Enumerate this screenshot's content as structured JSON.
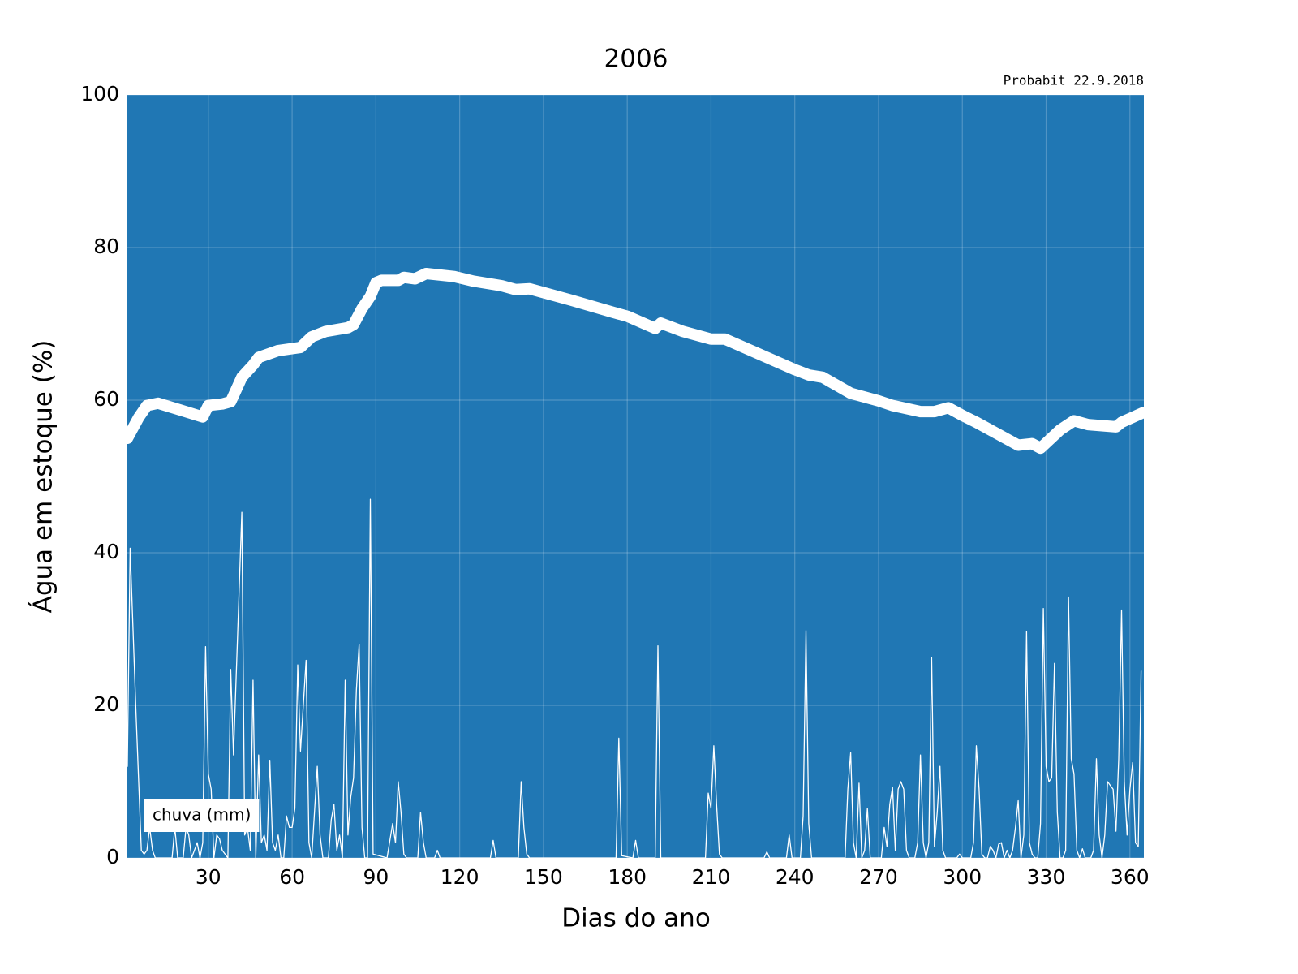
{
  "chart_data": {
    "type": "line",
    "title": "2006",
    "annotation": "Probabit 22.9.2018",
    "xlabel": "Dias do ano",
    "ylabel": "Água em estoque (%)",
    "xlim": [
      1,
      365
    ],
    "ylim": [
      0,
      100
    ],
    "xticks": [
      30,
      60,
      90,
      120,
      150,
      180,
      210,
      240,
      270,
      300,
      330,
      360
    ],
    "yticks": [
      0,
      20,
      40,
      60,
      80,
      100
    ],
    "grid": true,
    "legend": "lower left",
    "plot_background": "#2077b4",
    "annotation_color": "#2077b4",
    "series": [
      {
        "color": "#ffffff",
        "width": 14,
        "x": [
          1,
          5,
          8,
          12,
          20,
          28,
          30,
          35,
          38,
          40,
          42,
          46,
          48,
          55,
          63,
          67,
          72,
          80,
          82,
          85,
          88,
          90,
          92,
          98,
          100,
          104,
          108,
          118,
          125,
          135,
          140,
          145,
          160,
          175,
          180,
          190,
          192,
          200,
          210,
          215,
          220,
          240,
          245,
          250,
          260,
          270,
          275,
          285,
          290,
          295,
          300,
          305,
          320,
          325,
          328,
          335,
          340,
          345,
          355,
          357,
          365
        ],
        "values": [
          55.0,
          57.7,
          59.3,
          59.6,
          58.7,
          57.8,
          59.3,
          59.5,
          59.8,
          61.4,
          63.0,
          64.6,
          65.6,
          66.5,
          66.9,
          68.3,
          69.0,
          69.5,
          69.9,
          72.0,
          73.6,
          75.4,
          75.7,
          75.7,
          76.1,
          75.9,
          76.6,
          76.2,
          75.6,
          75.0,
          74.5,
          74.6,
          73.1,
          71.5,
          71.0,
          69.4,
          70.1,
          69.0,
          68.0,
          68.0,
          67.2,
          64.0,
          63.3,
          63.0,
          60.9,
          59.9,
          59.3,
          58.5,
          58.5,
          59.0,
          58.0,
          57.1,
          54.1,
          54.3,
          53.7,
          56.1,
          57.3,
          56.8,
          56.5,
          57.1,
          58.4
        ]
      },
      {
        "name": "chuva (mm)",
        "color": "#ffffff",
        "width": 1.3,
        "x": [
          1,
          2,
          4,
          6,
          7,
          8,
          9,
          10,
          11,
          17,
          18,
          19,
          21,
          22,
          23,
          24,
          26,
          27,
          28,
          29,
          30,
          31,
          32,
          33,
          34,
          35,
          37,
          38,
          39,
          42,
          43,
          44,
          45,
          46,
          47,
          48,
          49,
          50,
          51,
          52,
          53,
          54,
          55,
          56,
          57,
          58,
          59,
          60,
          61,
          62,
          63,
          65,
          66,
          67,
          69,
          70,
          71,
          73,
          74,
          75,
          76,
          77,
          78,
          79,
          80,
          81,
          82,
          83,
          84,
          85,
          86,
          87,
          88,
          89,
          94,
          96,
          97,
          98,
          99,
          100,
          101,
          105,
          106,
          107,
          108,
          111,
          112,
          113,
          131,
          132,
          133,
          141,
          142,
          143,
          144,
          145,
          176,
          177,
          178,
          182,
          183,
          184,
          190,
          191,
          192,
          208,
          209,
          210,
          211,
          212,
          213,
          214,
          229,
          230,
          231,
          237,
          238,
          239,
          242,
          243,
          244,
          245,
          246,
          258,
          259,
          260,
          261,
          262,
          263,
          264,
          265,
          266,
          267,
          271,
          272,
          273,
          274,
          275,
          276,
          277,
          278,
          279,
          280,
          281,
          283,
          284,
          285,
          286,
          287,
          288,
          289,
          290,
          291,
          292,
          293,
          294,
          298,
          299,
          300,
          303,
          304,
          305,
          306,
          307,
          308,
          309,
          310,
          311,
          312,
          313,
          314,
          315,
          316,
          317,
          318,
          319,
          320,
          321,
          322,
          323,
          324,
          325,
          326,
          327,
          328,
          329,
          330,
          331,
          332,
          333,
          334,
          335,
          336,
          337,
          338,
          339,
          340,
          341,
          342,
          343,
          344,
          346,
          347,
          348,
          349,
          350,
          351,
          352,
          353,
          354,
          355,
          356,
          357,
          358,
          359,
          360,
          361,
          362,
          363,
          364
        ],
        "values": [
          12,
          40.6,
          20,
          1,
          0.5,
          1,
          4,
          1,
          0,
          0,
          4,
          0,
          0,
          4,
          3,
          0,
          2,
          0,
          2,
          27.7,
          11,
          9,
          0,
          3,
          2.5,
          1,
          0,
          24.7,
          13.5,
          45.3,
          3,
          4,
          1,
          23.3,
          0,
          13.5,
          2,
          3,
          1,
          12.8,
          2,
          1,
          3,
          0,
          0,
          5.5,
          4,
          4,
          6.5,
          25.3,
          14,
          25.9,
          2,
          0,
          12,
          3,
          0,
          0,
          5,
          7,
          1,
          3,
          0,
          23.3,
          3,
          8,
          10.5,
          22,
          28,
          4,
          0,
          0,
          47,
          0.5,
          0,
          4.5,
          2,
          10,
          6,
          0.5,
          0,
          0,
          6,
          2,
          0,
          0,
          1,
          0,
          0,
          2.3,
          0,
          0,
          10,
          4,
          0.5,
          0,
          0,
          15.7,
          0.3,
          0,
          2.3,
          0,
          0,
          27.8,
          0,
          0,
          8.5,
          6.5,
          14.7,
          7,
          0.5,
          0,
          0,
          0.8,
          0,
          0,
          3,
          0,
          0,
          5.5,
          29.8,
          4.5,
          0,
          0,
          9,
          13.8,
          2,
          0,
          9.8,
          0,
          1,
          6.5,
          0,
          0,
          4,
          1.5,
          7,
          9.3,
          1,
          9,
          10,
          9,
          1,
          0,
          0,
          2,
          13.5,
          2,
          0,
          2,
          26.3,
          1.5,
          6,
          12,
          1,
          0,
          0,
          0.5,
          0,
          0,
          2,
          14.7,
          9,
          0.5,
          0,
          0,
          1.5,
          1,
          0,
          1.8,
          2,
          0,
          1,
          0,
          1,
          4,
          7.5,
          0,
          3,
          29.7,
          2,
          0.5,
          0,
          0,
          4.5,
          32.7,
          12,
          10,
          10.5,
          25.5,
          6,
          0,
          0,
          1,
          34.2,
          13,
          11,
          1,
          0,
          1.2,
          0,
          0,
          1,
          13,
          3,
          0,
          3,
          10,
          9.5,
          9,
          3.5,
          13,
          32.5,
          10,
          3,
          9,
          12.5,
          2,
          1.5,
          24.5
        ]
      }
    ]
  }
}
